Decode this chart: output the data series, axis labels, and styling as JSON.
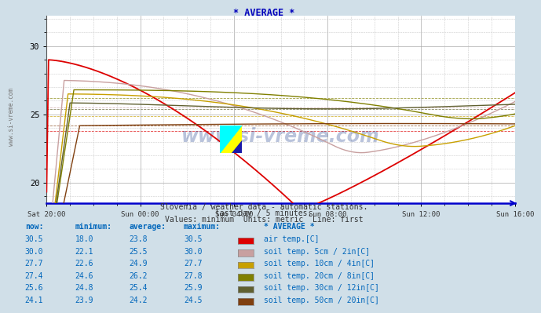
{
  "title": "* AVERAGE *",
  "subtitle1": "Slovenia / weather data - automatic stations.",
  "subtitle2": "last day / 5 minutes.",
  "subtitle3": "Values: minimum  Units: metric  Line: first",
  "bg_color": "#d0dfe8",
  "x_tick_labels": [
    "Sat 20:00",
    "Sun 00:00",
    "Sun 04:00",
    "Sun 08:00",
    "Sun 12:00",
    "Sun 16:00"
  ],
  "x_tick_positions": [
    0,
    48,
    96,
    144,
    192,
    240
  ],
  "yticks": [
    20,
    25,
    30
  ],
  "watermark": "www.si-vreme.com",
  "legend_header": "* AVERAGE *",
  "rows": [
    {
      "now": 30.5,
      "min": 18.0,
      "avg": 23.8,
      "max": 30.5,
      "color": "#dd0000",
      "label": "air temp.[C]"
    },
    {
      "now": 30.0,
      "min": 22.1,
      "avg": 25.5,
      "max": 30.0,
      "color": "#c8a0a0",
      "label": "soil temp. 5cm / 2in[C]"
    },
    {
      "now": 27.7,
      "min": 22.6,
      "avg": 24.9,
      "max": 27.7,
      "color": "#c8a000",
      "label": "soil temp. 10cm / 4in[C]"
    },
    {
      "now": 27.4,
      "min": 24.6,
      "avg": 26.2,
      "max": 27.8,
      "color": "#808000",
      "label": "soil temp. 20cm / 8in[C]"
    },
    {
      "now": 25.6,
      "min": 24.8,
      "avg": 25.4,
      "max": 25.9,
      "color": "#606030",
      "label": "soil temp. 30cm / 12in[C]"
    },
    {
      "now": 24.1,
      "min": 23.9,
      "avg": 24.2,
      "max": 24.5,
      "color": "#804010",
      "label": "soil temp. 50cm / 20in[C]"
    }
  ]
}
